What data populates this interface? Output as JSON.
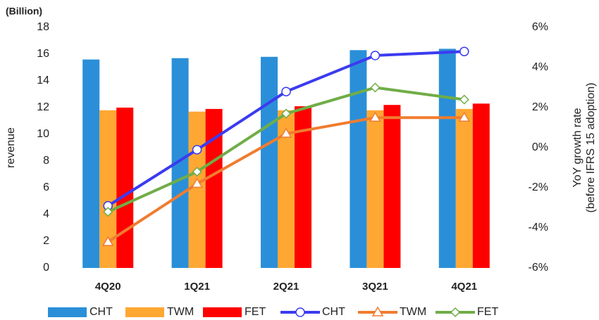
{
  "chart_data": {
    "type": "bar",
    "unit_label": "(Billion)",
    "y_label": "revenue",
    "y2_label": [
      "YoY growth rate",
      "(before IFRS  15 adoption)"
    ],
    "categories": [
      "4Q20",
      "1Q21",
      "2Q21",
      "3Q21",
      "4Q21"
    ],
    "series": [
      {
        "name": "CHT",
        "type": "bar",
        "color": "#2a8fd8",
        "values": [
          15.6,
          15.7,
          15.8,
          16.3,
          16.4
        ]
      },
      {
        "name": "TWM",
        "type": "bar",
        "color": "#ffa733",
        "values": [
          11.8,
          11.7,
          11.8,
          11.8,
          11.9
        ]
      },
      {
        "name": "FET",
        "type": "bar",
        "color": "#ff0000",
        "values": [
          12.0,
          11.9,
          12.1,
          12.2,
          12.3
        ]
      },
      {
        "name": "CHT",
        "type": "line",
        "axis": "y2",
        "marker": "circle",
        "color": "#3b3bf0",
        "values": [
          -2.9,
          -0.1,
          2.8,
          4.6,
          4.8
        ]
      },
      {
        "name": "TWM",
        "type": "line",
        "axis": "y2",
        "marker": "triangle",
        "color": "#f07c30",
        "values": [
          -4.7,
          -1.8,
          0.7,
          1.5,
          1.5
        ]
      },
      {
        "name": "FET",
        "type": "line",
        "axis": "y2",
        "marker": "diamond",
        "color": "#70ad47",
        "values": [
          -3.2,
          -1.2,
          1.7,
          3.0,
          2.4
        ]
      }
    ],
    "ylim": [
      0,
      18
    ],
    "yticks": [
      0,
      2,
      4,
      6,
      8,
      10,
      12,
      14,
      16,
      18
    ],
    "y2lim": [
      -6,
      6
    ],
    "y2ticks": [
      {
        "value": -6,
        "label": "-6%"
      },
      {
        "value": -4,
        "label": "-4%"
      },
      {
        "value": -2,
        "label": "-2%"
      },
      {
        "value": 0,
        "label": "0%"
      },
      {
        "value": 2,
        "label": "2%"
      },
      {
        "value": 4,
        "label": "4%"
      },
      {
        "value": 6,
        "label": "6%"
      }
    ],
    "grid": false,
    "legend": "bottom"
  }
}
